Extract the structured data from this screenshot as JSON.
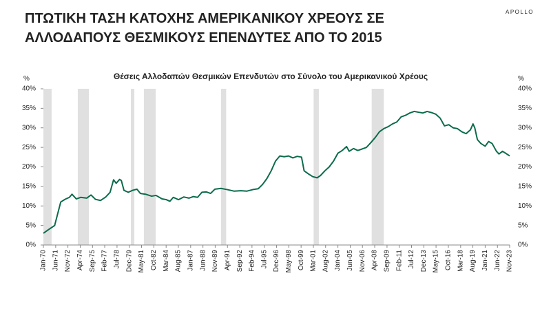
{
  "brand": "APOLLO",
  "chart_data": {
    "type": "line",
    "title": [
      "ΠΤΩΤΙΚΗ ΤΑΣΗ ΚΑΤΟΧΗΣ ΑΜΕΡΙΚΑΝΙΚΟΥ ΧΡΕΟΥΣ ΣΕ",
      "ΑΛΛΟΔΑΠΟΥΣ ΘΕΣΜΙΚΟΥΣ ΕΠΕΝΔΥΤΕΣ ΑΠΟ ΤΟ 2015"
    ],
    "subtitle": "Θέσεις Αλλοδαπών Θεσμικών Επενδυτών στο Σύνολο του  Αμερικανικού Χρέους",
    "y_unit_left": "%",
    "y_unit_right": "%",
    "color": "#0b6b4d",
    "recession_color": "#e0e0e0",
    "recessions": [
      [
        1970,
        1970.95
      ],
      [
        1973.97,
        1975.25
      ],
      [
        1980.1,
        1980.5
      ],
      [
        1981.6,
        1982.96
      ],
      [
        1990.5,
        1991.1
      ],
      [
        2001.2,
        2001.8
      ],
      [
        2007.9,
        2009.3
      ]
    ],
    "x": [
      1970,
      1970.5,
      1971.3,
      1972,
      1972.5,
      1973,
      1973.3,
      1973.8,
      1974.3,
      1975,
      1975.5,
      1976,
      1976.6,
      1977.2,
      1977.7,
      1978.1,
      1978.4,
      1978.8,
      1979.0,
      1979.3,
      1979.8,
      1980.3,
      1980.8,
      1981.2,
      1981.8,
      1982.5,
      1983,
      1983.7,
      1984.2,
      1984.6,
      1985,
      1985.6,
      1986.2,
      1986.8,
      1987.3,
      1987.8,
      1988.3,
      1988.8,
      1989.3,
      1989.8,
      1990.5,
      1991.2,
      1992,
      1992.8,
      1993.5,
      1994.2,
      1994.8,
      1995.3,
      1995.8,
      1996.3,
      1996.8,
      1997.3,
      1997.8,
      1998.3,
      1998.8,
      1999.3,
      1999.8,
      2000.1,
      2000.6,
      2001.1,
      2001.6,
      2002,
      2002.5,
      2003,
      2003.5,
      2004,
      2004.5,
      2005,
      2005.3,
      2005.8,
      2006.3,
      2006.8,
      2007.3,
      2007.8,
      2008.3,
      2008.8,
      2009.3,
      2009.8,
      2010.3,
      2010.8,
      2011.3,
      2011.8,
      2012.3,
      2012.8,
      2013.3,
      2013.8,
      2014.3,
      2014.8,
      2015.3,
      2015.8,
      2016.3,
      2016.8,
      2017.3,
      2017.8,
      2018.3,
      2018.8,
      2019.3,
      2019.6,
      2019.8,
      2020.1,
      2020.5,
      2021.0,
      2021.4,
      2021.8,
      2022.3,
      2022.6,
      2023.0,
      2023.5,
      2023.83
    ],
    "values": [
      3,
      3.8,
      5,
      11,
      11.7,
      12.2,
      13,
      11.8,
      12.2,
      12,
      12.8,
      11.7,
      11.4,
      12.3,
      13.5,
      16.7,
      15.8,
      16.8,
      16.5,
      14,
      13.5,
      14,
      14.3,
      13.2,
      13,
      12.5,
      12.7,
      11.8,
      11.6,
      11.2,
      12.2,
      11.6,
      12.3,
      12,
      12.4,
      12.2,
      13.5,
      13.6,
      13.2,
      14.3,
      14.5,
      14.2,
      13.8,
      13.9,
      13.8,
      14.2,
      14.4,
      15.5,
      17,
      19,
      21.5,
      22.8,
      22.6,
      22.8,
      22.3,
      22.7,
      22.5,
      19,
      18.2,
      17.5,
      17.2,
      17.8,
      19,
      20,
      21.5,
      23.5,
      24.2,
      25.2,
      24,
      24.7,
      24.2,
      24.6,
      25,
      26.2,
      27.5,
      29,
      29.8,
      30.3,
      31,
      31.5,
      32.8,
      33.2,
      33.8,
      34.2,
      34,
      33.8,
      34.2,
      33.9,
      33.5,
      32.5,
      30.5,
      30.8,
      30,
      29.8,
      29,
      28.5,
      29.5,
      31,
      30,
      27,
      26,
      25.3,
      26.5,
      26,
      24,
      23.3,
      24,
      23.3,
      22.8
    ],
    "xlim": [
      1970,
      2023.83
    ],
    "xticks": [
      {
        "value": 1970,
        "label": "Jan-70"
      },
      {
        "value": 1971.42,
        "label": "Jun-71"
      },
      {
        "value": 1972.83,
        "label": "Nov-72"
      },
      {
        "value": 1974.25,
        "label": "Apr-74"
      },
      {
        "value": 1975.67,
        "label": "Sep-75"
      },
      {
        "value": 1977.08,
        "label": "Feb-77"
      },
      {
        "value": 1978.5,
        "label": "Jul-78"
      },
      {
        "value": 1979.92,
        "label": "Dec-79"
      },
      {
        "value": 1981.33,
        "label": "May-81"
      },
      {
        "value": 1982.75,
        "label": "Oct-82"
      },
      {
        "value": 1984.17,
        "label": "Mar-84"
      },
      {
        "value": 1985.58,
        "label": "Aug-85"
      },
      {
        "value": 1987,
        "label": "Jan-87"
      },
      {
        "value": 1988.42,
        "label": "Jun-88"
      },
      {
        "value": 1989.83,
        "label": "Nov-89"
      },
      {
        "value": 1991.25,
        "label": "Apr-91"
      },
      {
        "value": 1992.67,
        "label": "Sep-92"
      },
      {
        "value": 1994.08,
        "label": "Feb-94"
      },
      {
        "value": 1995.5,
        "label": "Jul-95"
      },
      {
        "value": 1996.92,
        "label": "Dec-96"
      },
      {
        "value": 1998.33,
        "label": "May-98"
      },
      {
        "value": 1999.75,
        "label": "Oct-99"
      },
      {
        "value": 2001.17,
        "label": "Mar-01"
      },
      {
        "value": 2002.58,
        "label": "Aug-02"
      },
      {
        "value": 2004,
        "label": "Jan-04"
      },
      {
        "value": 2005.42,
        "label": "Jun-05"
      },
      {
        "value": 2006.83,
        "label": "Nov-06"
      },
      {
        "value": 2008.25,
        "label": "Apr-08"
      },
      {
        "value": 2009.67,
        "label": "Sep-09"
      },
      {
        "value": 2011.08,
        "label": "Feb-11"
      },
      {
        "value": 2012.5,
        "label": "Jul-12"
      },
      {
        "value": 2013.92,
        "label": "Dec-13"
      },
      {
        "value": 2015.33,
        "label": "May-15"
      },
      {
        "value": 2016.75,
        "label": "Oct-16"
      },
      {
        "value": 2018.17,
        "label": "Mar-18"
      },
      {
        "value": 2019.58,
        "label": "Aug-19"
      },
      {
        "value": 2021,
        "label": "Jan-21"
      },
      {
        "value": 2022.42,
        "label": "Jun-22"
      },
      {
        "value": 2023.83,
        "label": "Nov-23"
      }
    ],
    "ylim": [
      0,
      40
    ],
    "yticks": [
      {
        "value": 0,
        "label": "0%"
      },
      {
        "value": 5,
        "label": "5%"
      },
      {
        "value": 10,
        "label": "10%"
      },
      {
        "value": 15,
        "label": "15%"
      },
      {
        "value": 20,
        "label": "20%"
      },
      {
        "value": 25,
        "label": "25%"
      },
      {
        "value": 30,
        "label": "30%"
      },
      {
        "value": 35,
        "label": "35%"
      },
      {
        "value": 40,
        "label": "40%"
      }
    ]
  }
}
